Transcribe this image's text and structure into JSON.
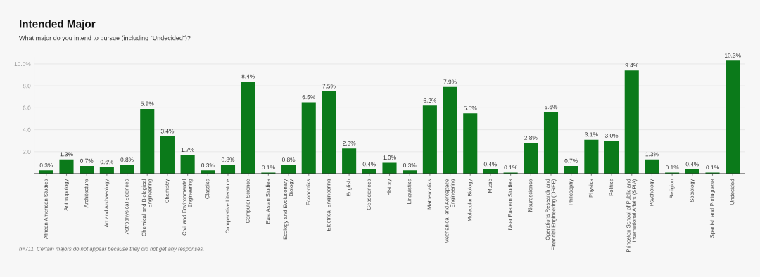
{
  "chart_data": {
    "type": "bar",
    "title": "Intended Major",
    "subtitle": "What major do you intend to pursue (including “Undecided”)?",
    "categories": [
      "African American Studies",
      "Anthropology",
      "Architecture",
      "Art and Archaeology",
      "Astrophysical Sciences",
      "Chemical and Biological Engineering",
      "Chemistry",
      "Civil and Environmental Engineering",
      "Classics",
      "Comparative Literature",
      "Computer Science",
      "East Asian Studies",
      "Ecology and Evolutionary Biology",
      "Economics",
      "Electrical Engineering",
      "English",
      "Geosciences",
      "History",
      "Linguistics",
      "Mathematics",
      "Mechanical and Aerospace Engineering",
      "Molecular Biology",
      "Music",
      "Near Eastern Studies",
      "Neuroscience",
      "Operations Research and Financial Engineering (ORFE)",
      "Philosophy",
      "Physics",
      "Politics",
      "Princeton School of Public and International Affairs (SPIA)",
      "Psychology",
      "Religion",
      "Sociology",
      "Spanish and Portuguese",
      "Undecided"
    ],
    "values": [
      0.3,
      1.3,
      0.7,
      0.6,
      0.8,
      5.9,
      3.4,
      1.7,
      0.3,
      0.8,
      8.4,
      0.1,
      0.8,
      6.5,
      7.5,
      2.3,
      0.4,
      1.0,
      0.3,
      6.2,
      7.9,
      5.5,
      0.4,
      0.1,
      2.8,
      5.6,
      0.7,
      3.1,
      3.0,
      9.4,
      1.3,
      0.1,
      0.4,
      0.1,
      10.3
    ],
    "value_labels": [
      "0.3%",
      "1.3%",
      "0.7%",
      "0.6%",
      "0.8%",
      "5.9%",
      "3.4%",
      "1.7%",
      "0.3%",
      "0.8%",
      "8.4%",
      "0.1%",
      "0.8%",
      "6.5%",
      "7.5%",
      "2.3%",
      "0.4%",
      "1.0%",
      "0.3%",
      "6.2%",
      "7.9%",
      "5.5%",
      "0.4%",
      "0.1%",
      "2.8%",
      "5.6%",
      "0.7%",
      "3.1%",
      "3.0%",
      "9.4%",
      "1.3%",
      "0.1%",
      "0.4%",
      "0.1%",
      "10.3%"
    ],
    "color": "#0b7a1a",
    "ylim": [
      0,
      10.6
    ],
    "yticks": [
      {
        "value": 2,
        "label": "2.0"
      },
      {
        "value": 4,
        "label": "4.0"
      },
      {
        "value": 6,
        "label": "6.0"
      },
      {
        "value": 8,
        "label": "8.0"
      },
      {
        "value": 10,
        "label": "10.0%"
      }
    ],
    "grid": "y",
    "annotations": [
      "n=711. Certain majors do not appear because they did not get any responses."
    ]
  }
}
